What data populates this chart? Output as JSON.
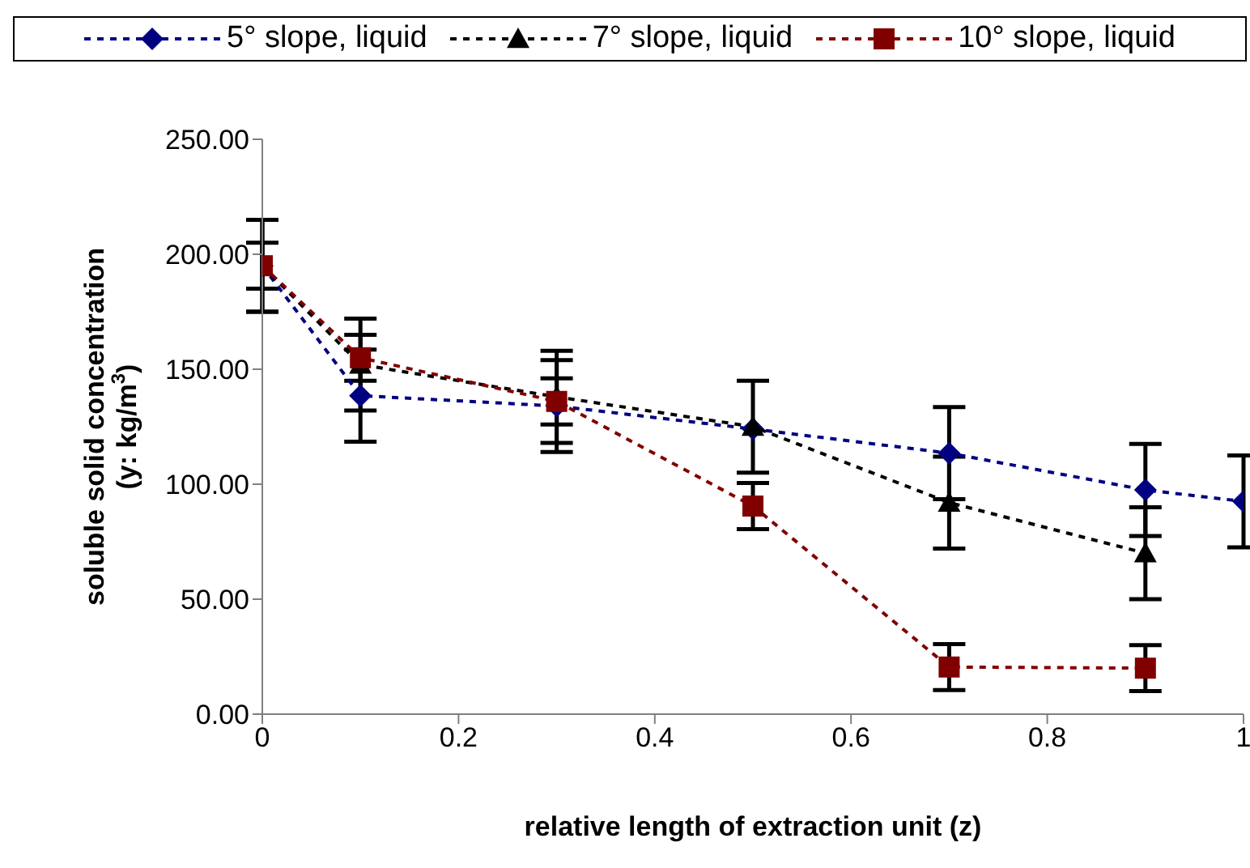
{
  "chart_data": {
    "type": "line",
    "xlabel": "relative length of extraction unit (z)",
    "ylabel": "soluble solid concentration\n(y: kg/m$^{3}$)",
    "x": [
      0,
      0.1,
      0.3,
      0.5,
      0.7,
      0.9,
      1
    ],
    "xlim": [
      0,
      1
    ],
    "xticks": [
      0,
      0.2,
      0.4,
      0.6,
      0.8,
      1
    ],
    "ylim": [
      0,
      250
    ],
    "yticks": [
      {
        "value": 0,
        "label": "0.00"
      },
      {
        "value": 50,
        "label": "50.00"
      },
      {
        "value": 100,
        "label": "100.00"
      },
      {
        "value": 150,
        "label": "150.00"
      },
      {
        "value": 200,
        "label": "200.00"
      },
      {
        "value": 250,
        "label": "250.00"
      }
    ],
    "grid": false,
    "legend": "top",
    "line_style": "dashed",
    "series": [
      {
        "name": "5° slope, liquid",
        "color": "#000080",
        "marker": "diamond",
        "values": [
          195,
          138.5,
          134,
          124,
          113.5,
          97.5,
          92.5
        ],
        "errors": [
          20,
          20,
          20,
          null,
          20,
          20,
          20
        ]
      },
      {
        "name": "7° slope, liquid",
        "color": "#000000",
        "marker": "triangle",
        "x": [
          0,
          0.1,
          0.3,
          0.5,
          0.7,
          0.9
        ],
        "values": [
          195,
          152,
          138,
          125,
          92,
          70
        ],
        "errors": [
          20,
          20,
          20,
          20,
          20,
          20
        ]
      },
      {
        "name": "10° slope, liquid",
        "color": "#800000",
        "marker": "square",
        "x": [
          0,
          0.1,
          0.3,
          0.5,
          0.7,
          0.9
        ],
        "values": [
          195,
          155,
          136,
          90.5,
          20.5,
          20
        ],
        "errors": [
          10,
          10,
          10,
          10,
          10,
          10
        ]
      }
    ]
  }
}
